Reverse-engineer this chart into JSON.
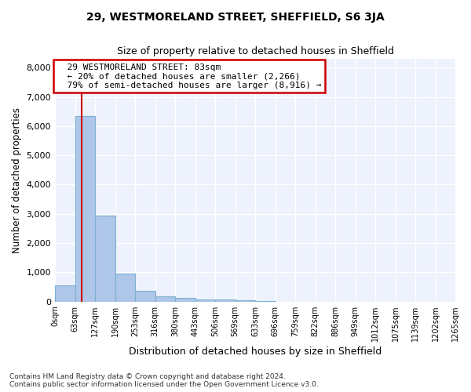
{
  "title1": "29, WESTMORELAND STREET, SHEFFIELD, S6 3JA",
  "title2": "Size of property relative to detached houses in Sheffield",
  "xlabel": "Distribution of detached houses by size in Sheffield",
  "ylabel": "Number of detached properties",
  "footer1": "Contains HM Land Registry data © Crown copyright and database right 2024.",
  "footer2": "Contains public sector information licensed under the Open Government Licence v3.0.",
  "bin_labels": [
    "0sqm",
    "63sqm",
    "127sqm",
    "190sqm",
    "253sqm",
    "316sqm",
    "380sqm",
    "443sqm",
    "506sqm",
    "569sqm",
    "633sqm",
    "696sqm",
    "759sqm",
    "822sqm",
    "886sqm",
    "949sqm",
    "1012sqm",
    "1075sqm",
    "1139sqm",
    "1202sqm",
    "1265sqm"
  ],
  "bar_heights": [
    550,
    6350,
    2950,
    950,
    360,
    175,
    135,
    80,
    80,
    40,
    30,
    0,
    0,
    0,
    0,
    0,
    0,
    0,
    0,
    0
  ],
  "bar_color": "#aec6e8",
  "bar_edge_color": "#7bafd4",
  "property_size": 83,
  "property_label": "29 WESTMORELAND STREET: 83sqm",
  "annotation_line2": "← 20% of detached houses are smaller (2,266)",
  "annotation_line3": "79% of semi-detached houses are larger (8,916) →",
  "vline_color": "#cc0000",
  "annotation_box_color": "#cc0000",
  "ylim": [
    0,
    8300
  ],
  "yticks": [
    0,
    1000,
    2000,
    3000,
    4000,
    5000,
    6000,
    7000,
    8000
  ],
  "bin_width": 63,
  "n_bins": 20,
  "bg_color": "#eef2fc"
}
